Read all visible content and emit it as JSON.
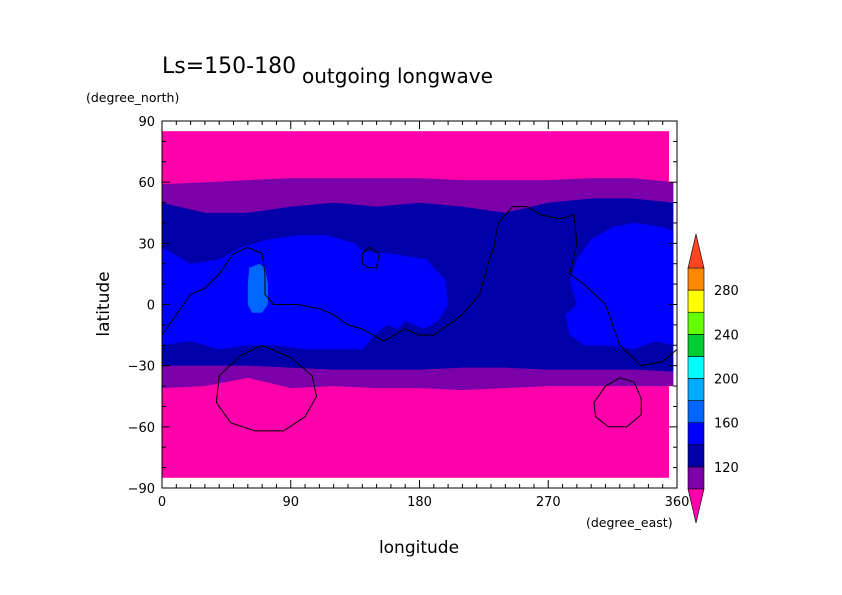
{
  "chart_data": {
    "type": "heatmap",
    "title_left": "Ls=150-180",
    "title": "outgoing longwave",
    "xlabel": "longitude",
    "ylabel": "latitude",
    "x_units": "(degree_east)",
    "y_units": "(degree_north)",
    "xlim": [
      0,
      360
    ],
    "ylim": [
      -90,
      90
    ],
    "x_ticks": [
      0,
      90,
      180,
      270,
      360
    ],
    "y_ticks": [
      -90,
      -60,
      -30,
      0,
      30,
      60,
      90
    ],
    "x_tick_labels": [
      "0",
      "90",
      "180",
      "270",
      "360"
    ],
    "y_tick_labels": [
      "−90",
      "−60",
      "−30",
      "0",
      "30",
      "60",
      "90"
    ],
    "colorbar": {
      "levels": [
        100,
        120,
        140,
        160,
        180,
        200,
        220,
        240,
        260,
        280,
        300
      ],
      "labels": [
        {
          "value": 120,
          "text": "120"
        },
        {
          "value": 160,
          "text": "160"
        },
        {
          "value": 200,
          "text": "200"
        },
        {
          "value": 240,
          "text": "240"
        },
        {
          "value": 280,
          "text": "280"
        }
      ],
      "colors": {
        "below": "#ff00aa",
        "bands": [
          "#7c00aa",
          "#0000aa",
          "#0000ff",
          "#0066ff",
          "#00aaff",
          "#00ffff",
          "#00cc33",
          "#66ff00",
          "#ffff00",
          "#ff8800"
        ],
        "above": "#ff4422"
      }
    },
    "fields": {
      "lat_edge": 85,
      "regions": [
        {
          "name": "band-100-120-north",
          "color_index": 0,
          "outline": [
            [
              0,
              59
            ],
            [
              30,
              60
            ],
            [
              60,
              61
            ],
            [
              90,
              62
            ],
            [
              120,
              62
            ],
            [
              150,
              62
            ],
            [
              180,
              62
            ],
            [
              210,
              61
            ],
            [
              240,
              61
            ],
            [
              270,
              61
            ],
            [
              300,
              62
            ],
            [
              330,
              62
            ],
            [
              360,
              60
            ],
            [
              360,
              50
            ],
            [
              330,
              52
            ],
            [
              300,
              52
            ],
            [
              270,
              50
            ],
            [
              240,
              45
            ],
            [
              210,
              48
            ],
            [
              180,
              50
            ],
            [
              150,
              48
            ],
            [
              120,
              50
            ],
            [
              90,
              48
            ],
            [
              60,
              45
            ],
            [
              30,
              45
            ],
            [
              0,
              50
            ]
          ]
        },
        {
          "name": "band-100-120-south",
          "color_index": 0,
          "outline": [
            [
              0,
              -30
            ],
            [
              30,
              -30
            ],
            [
              60,
              -30
            ],
            [
              90,
              -31
            ],
            [
              120,
              -32
            ],
            [
              150,
              -32
            ],
            [
              180,
              -32
            ],
            [
              210,
              -31
            ],
            [
              240,
              -31
            ],
            [
              270,
              -32
            ],
            [
              300,
              -32
            ],
            [
              330,
              -32
            ],
            [
              360,
              -33
            ],
            [
              360,
              -40
            ],
            [
              330,
              -40
            ],
            [
              300,
              -40
            ],
            [
              270,
              -40
            ],
            [
              240,
              -41
            ],
            [
              210,
              -42
            ],
            [
              180,
              -41
            ],
            [
              150,
              -41
            ],
            [
              120,
              -40
            ],
            [
              90,
              -41
            ],
            [
              60,
              -36
            ],
            [
              30,
              -40
            ],
            [
              0,
              -41
            ]
          ]
        },
        {
          "name": "band-120-140",
          "color_index": 1,
          "outline": [
            [
              0,
              50
            ],
            [
              30,
              45
            ],
            [
              60,
              45
            ],
            [
              90,
              48
            ],
            [
              120,
              50
            ],
            [
              150,
              48
            ],
            [
              180,
              50
            ],
            [
              210,
              48
            ],
            [
              240,
              45
            ],
            [
              270,
              50
            ],
            [
              300,
              52
            ],
            [
              330,
              52
            ],
            [
              360,
              50
            ],
            [
              360,
              -33
            ],
            [
              330,
              -32
            ],
            [
              300,
              -32
            ],
            [
              270,
              -32
            ],
            [
              240,
              -31
            ],
            [
              210,
              -31
            ],
            [
              180,
              -32
            ],
            [
              150,
              -32
            ],
            [
              120,
              -32
            ],
            [
              90,
              -31
            ],
            [
              60,
              -30
            ],
            [
              30,
              -30
            ],
            [
              0,
              -30
            ]
          ]
        },
        {
          "name": "band-140-160-west",
          "color_index": 2,
          "outline": [
            [
              0,
              28
            ],
            [
              20,
              20
            ],
            [
              40,
              22
            ],
            [
              55,
              28
            ],
            [
              75,
              32
            ],
            [
              95,
              34
            ],
            [
              115,
              34
            ],
            [
              125,
              32
            ],
            [
              135,
              30
            ],
            [
              140,
              26
            ],
            [
              160,
              25
            ],
            [
              185,
              22
            ],
            [
              198,
              12
            ],
            [
              200,
              0
            ],
            [
              193,
              -8
            ],
            [
              183,
              -12
            ],
            [
              170,
              -8
            ],
            [
              165,
              -12
            ],
            [
              158,
              -10
            ],
            [
              150,
              -14
            ],
            [
              145,
              -18
            ],
            [
              140,
              -22
            ],
            [
              125,
              -22
            ],
            [
              100,
              -22
            ],
            [
              80,
              -20
            ],
            [
              60,
              -20
            ],
            [
              40,
              -22
            ],
            [
              20,
              -18
            ],
            [
              0,
              -20
            ]
          ]
        },
        {
          "name": "band-140-160-east",
          "color_index": 2,
          "outline": [
            [
              290,
              0
            ],
            [
              285,
              12
            ],
            [
              290,
              22
            ],
            [
              300,
              32
            ],
            [
              315,
              38
            ],
            [
              330,
              40
            ],
            [
              350,
              38
            ],
            [
              360,
              36
            ],
            [
              360,
              -20
            ],
            [
              345,
              -18
            ],
            [
              330,
              -22
            ],
            [
              310,
              -20
            ],
            [
              295,
              -20
            ],
            [
              285,
              -15
            ],
            [
              282,
              -5
            ]
          ]
        },
        {
          "name": "band-160-180",
          "color_index": 3,
          "outline": [
            [
              61,
              18
            ],
            [
              68,
              20
            ],
            [
              72,
              18
            ],
            [
              74,
              10
            ],
            [
              74,
              0
            ],
            [
              70,
              -4
            ],
            [
              63,
              -4
            ],
            [
              60,
              0
            ],
            [
              60,
              10
            ]
          ]
        }
      ]
    },
    "contours": [
      {
        "name": "contour-north-america",
        "closed": false,
        "points": [
          [
            0,
            -15
          ],
          [
            10,
            -5
          ],
          [
            20,
            5
          ],
          [
            30,
            8
          ],
          [
            40,
            15
          ],
          [
            50,
            25
          ],
          [
            60,
            28
          ],
          [
            70,
            25
          ],
          [
            72,
            15
          ],
          [
            72,
            5
          ],
          [
            78,
            0
          ],
          [
            95,
            0
          ],
          [
            110,
            -2
          ],
          [
            120,
            -5
          ],
          [
            130,
            -10
          ],
          [
            140,
            -12
          ],
          [
            155,
            -18
          ],
          [
            170,
            -12
          ],
          [
            180,
            -15
          ],
          [
            190,
            -15
          ],
          [
            200,
            -10
          ],
          [
            210,
            -5
          ],
          [
            222,
            5
          ],
          [
            228,
            20
          ],
          [
            232,
            28
          ],
          [
            235,
            40
          ],
          [
            245,
            48
          ],
          [
            255,
            48
          ],
          [
            265,
            44
          ],
          [
            278,
            42
          ],
          [
            288,
            44
          ],
          [
            290,
            30
          ],
          [
            285,
            15
          ],
          [
            295,
            10
          ],
          [
            310,
            0
          ],
          [
            315,
            -10
          ],
          [
            320,
            -20
          ],
          [
            335,
            -30
          ],
          [
            350,
            -28
          ],
          [
            360,
            -22
          ]
        ]
      },
      {
        "name": "contour-small-circle-north",
        "closed": true,
        "points": [
          [
            140,
            25
          ],
          [
            145,
            28
          ],
          [
            152,
            25
          ],
          [
            150,
            18
          ],
          [
            144,
            18
          ],
          [
            140,
            20
          ]
        ]
      },
      {
        "name": "contour-south-west",
        "closed": true,
        "points": [
          [
            40,
            -35
          ],
          [
            55,
            -25
          ],
          [
            70,
            -20
          ],
          [
            90,
            -26
          ],
          [
            105,
            -35
          ],
          [
            108,
            -45
          ],
          [
            100,
            -55
          ],
          [
            85,
            -62
          ],
          [
            65,
            -62
          ],
          [
            48,
            -58
          ],
          [
            38,
            -48
          ]
        ]
      },
      {
        "name": "contour-south-east",
        "closed": true,
        "points": [
          [
            310,
            -40
          ],
          [
            320,
            -36
          ],
          [
            330,
            -38
          ],
          [
            335,
            -46
          ],
          [
            335,
            -54
          ],
          [
            325,
            -60
          ],
          [
            312,
            -60
          ],
          [
            303,
            -55
          ],
          [
            302,
            -48
          ]
        ]
      }
    ]
  }
}
